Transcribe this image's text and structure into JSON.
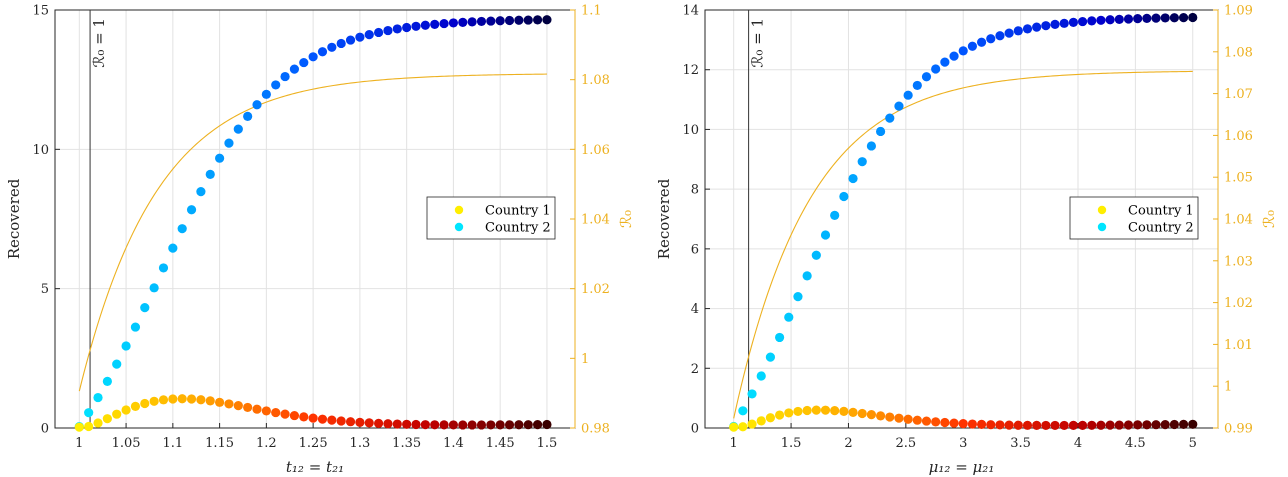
{
  "chart_data": [
    {
      "type": "scatter",
      "xlabel": "t₁₂ = t₂₁",
      "ylabel": "Recovered",
      "y2label": "ℛ₀",
      "xlim": [
        0.974,
        1.53
      ],
      "ylim": [
        0,
        15
      ],
      "y2lim": [
        0.98,
        1.1
      ],
      "xticks": [
        1,
        1.05,
        1.1,
        1.15,
        1.2,
        1.25,
        1.3,
        1.35,
        1.4,
        1.45,
        1.5
      ],
      "xtick_labels": [
        "1",
        "1.05",
        "1.1",
        "1.15",
        "1.2",
        "1.25",
        "1.3",
        "1.35",
        "1.4",
        "1.45",
        "1.5"
      ],
      "yticks": [
        0,
        5,
        10,
        15
      ],
      "ytick_labels": [
        "0",
        "5",
        "10",
        "15"
      ],
      "y2ticks": [
        0.98,
        1,
        1.02,
        1.04,
        1.06,
        1.08,
        1.1
      ],
      "y2tick_labels": [
        "0.98",
        "1",
        "1.02",
        "1.04",
        "1.06",
        "1.08",
        "1.1"
      ],
      "grid": true,
      "legend_position": "right",
      "annotation": {
        "text": "ℛ₀ = 1",
        "x": 1.0115
      },
      "x": {
        "start": 1.0,
        "stop": 1.5,
        "count": 51
      },
      "series": [
        {
          "name": "Country 1",
          "legend_color": "#FFEE00",
          "peak_x": 1.11,
          "peak_y": 1.05,
          "end_y": 0.13,
          "colormap": "hot"
        },
        {
          "name": "Country 2",
          "legend_color": "#00E5FF",
          "midpoint_x": 1.085,
          "end_y": 14.65,
          "colormap": "cool-blue"
        },
        {
          "name": "R0",
          "color": "#EDB120",
          "start_y2": 0.9906,
          "end_y2": 1.0816,
          "axis": "right"
        }
      ]
    },
    {
      "type": "scatter",
      "xlabel": "μ₁₂ = μ₂₁",
      "ylabel": "Recovered",
      "y2label": "ℛ₀",
      "xlim": [
        0.75,
        5.22
      ],
      "ylim": [
        0,
        14
      ],
      "y2lim": [
        0.99,
        1.09
      ],
      "xticks": [
        1,
        1.5,
        2,
        2.5,
        3,
        3.5,
        4,
        4.5,
        5
      ],
      "xtick_labels": [
        "1",
        "1.5",
        "2",
        "2.5",
        "3",
        "3.5",
        "4",
        "4.5",
        "5"
      ],
      "yticks": [
        0,
        2,
        4,
        6,
        8,
        10,
        12,
        14
      ],
      "ytick_labels": [
        "0",
        "2",
        "4",
        "6",
        "8",
        "10",
        "12",
        "14"
      ],
      "y2ticks": [
        0.99,
        1,
        1.01,
        1.02,
        1.03,
        1.04,
        1.05,
        1.06,
        1.07,
        1.08,
        1.09
      ],
      "y2tick_labels": [
        "0.99",
        "1",
        "1.01",
        "1.02",
        "1.03",
        "1.04",
        "1.05",
        "1.06",
        "1.07",
        "1.08",
        "1.09"
      ],
      "grid": true,
      "legend_position": "right",
      "annotation": {
        "text": "ℛ₀ = 1",
        "x": 1.13
      },
      "x": {
        "start": 1.0,
        "stop": 5.0,
        "count": 51
      },
      "series": [
        {
          "name": "Country 1",
          "legend_color": "#FFEE00",
          "peak_x": 1.75,
          "peak_y": 0.6,
          "end_y": 0.13,
          "colormap": "hot"
        },
        {
          "name": "Country 2",
          "legend_color": "#00E5FF",
          "midpoint_x": 1.6,
          "end_y": 13.75,
          "colormap": "cool-blue"
        },
        {
          "name": "R0",
          "color": "#EDB120",
          "start_y2": 0.9923,
          "end_y2": 1.0753,
          "axis": "right"
        }
      ]
    }
  ]
}
